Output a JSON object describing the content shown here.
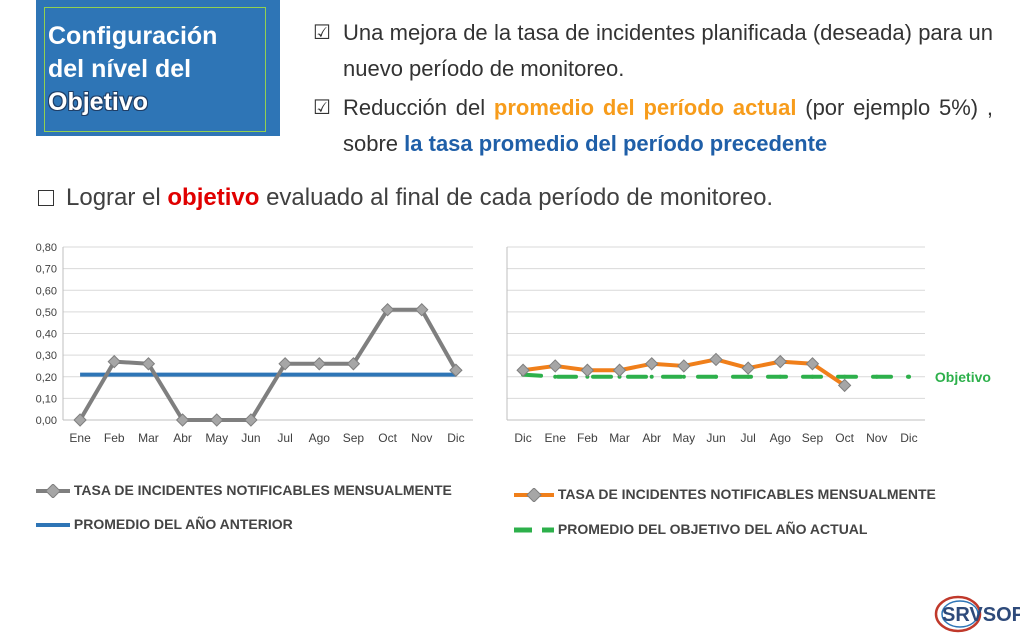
{
  "title": {
    "line1": "Configuración",
    "line2": "del nível del",
    "line3": "Objetivo"
  },
  "bullets": {
    "b1": "Una mejora de la tasa de incidentes planificada (deseada) para un nuevo período de monitoreo.",
    "b2_pre": "Reducción del ",
    "b2_orange": "promedio del período actual",
    "b2_mid": " (por ejemplo 5%) , sobre ",
    "b2_blue": "la tasa promedio del período precedente",
    "b3_pre": "Lograr el ",
    "b3_red": "objetivo",
    "b3_post": " evaluado al final de cada período de monitoreo."
  },
  "colors": {
    "title_bg": "#2e75b6",
    "title_border": "#92d050",
    "left_series": "#7f7f7f",
    "left_avg": "#2e75b6",
    "right_series": "#f07f1a",
    "right_target": "#2db04b"
  },
  "chart_data": [
    {
      "type": "line",
      "categories": [
        "Ene",
        "Feb",
        "Mar",
        "Abr",
        "May",
        "Jun",
        "Jul",
        "Ago",
        "Sep",
        "Oct",
        "Nov",
        "Dic"
      ],
      "ylim": [
        0,
        0.8
      ],
      "yticks": [
        "0,00",
        "0,10",
        "0,20",
        "0,30",
        "0,40",
        "0,50",
        "0,60",
        "0,70",
        "0,80"
      ],
      "grid": true,
      "series": [
        {
          "name": "TASA DE INCIDENTES NOTIFICABLES MENSUALMENTE",
          "values": [
            0,
            0.27,
            0.26,
            0,
            0,
            0,
            0.26,
            0.26,
            0.26,
            0.51,
            0.51,
            0.23
          ]
        },
        {
          "name": "PROMEDIO DEL AÑO ANTERIOR",
          "values": [
            0.21,
            0.21,
            0.21,
            0.21,
            0.21,
            0.21,
            0.21,
            0.21,
            0.21,
            0.21,
            0.21,
            0.21
          ]
        }
      ]
    },
    {
      "type": "line",
      "categories": [
        "Dic",
        "Ene",
        "Feb",
        "Mar",
        "Abr",
        "May",
        "Jun",
        "Jul",
        "Ago",
        "Sep",
        "Oct",
        "Nov",
        "Dic"
      ],
      "ylim": [
        0,
        0.8
      ],
      "grid": true,
      "annotation": "Objetivo",
      "series": [
        {
          "name": "TASA DE INCIDENTES NOTIFICABLES MENSUALMENTE",
          "values": [
            0.23,
            0.25,
            0.23,
            0.23,
            0.26,
            0.25,
            0.28,
            0.24,
            0.27,
            0.26,
            0.16,
            null,
            null
          ]
        },
        {
          "name": "PROMEDIO DEL OBJETIVO DEL AÑO ACTUAL",
          "values": [
            0.21,
            0.2,
            0.2,
            0.2,
            0.2,
            0.2,
            0.2,
            0.2,
            0.2,
            0.2,
            0.2,
            0.2,
            0.2
          ]
        }
      ]
    }
  ],
  "logo": {
    "text": "SRVSOP"
  }
}
